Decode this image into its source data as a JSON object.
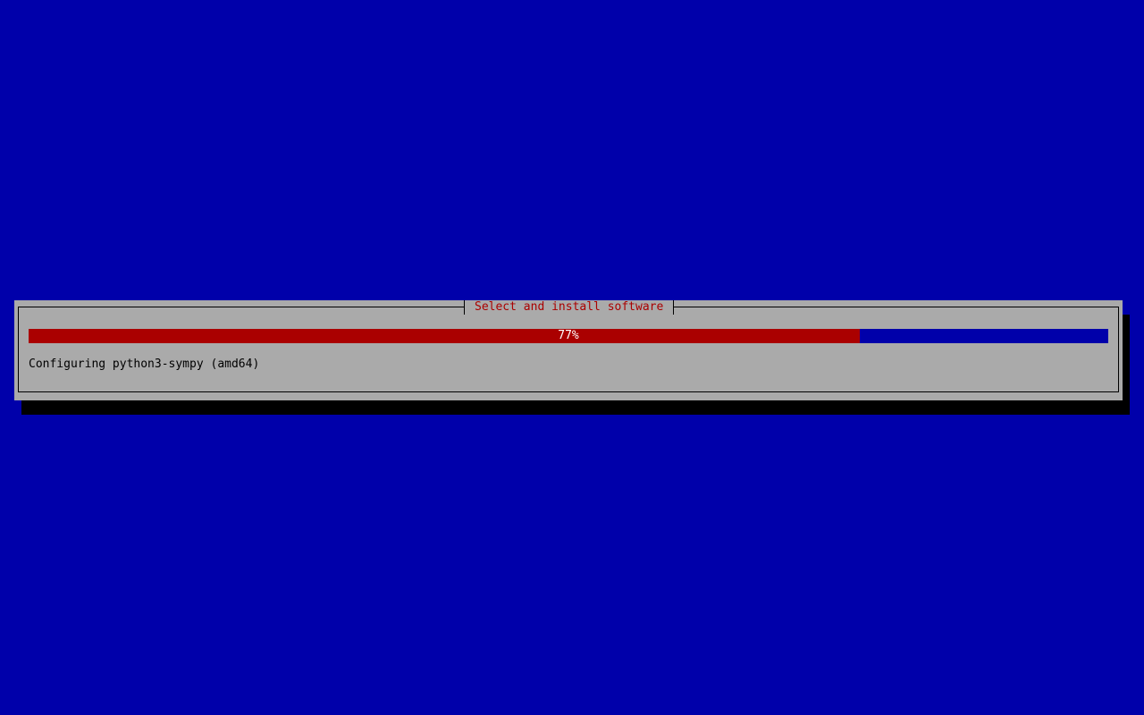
{
  "dialog": {
    "title": "Select and install software",
    "progress": {
      "percent": 77,
      "label": "77%"
    },
    "status": "Configuring python3-sympy (amd64)"
  },
  "colors": {
    "background": "#0000aa",
    "dialog": "#aaaaaa",
    "title": "#aa0000",
    "progress_fill": "#aa0000",
    "progress_track": "#0000aa"
  }
}
